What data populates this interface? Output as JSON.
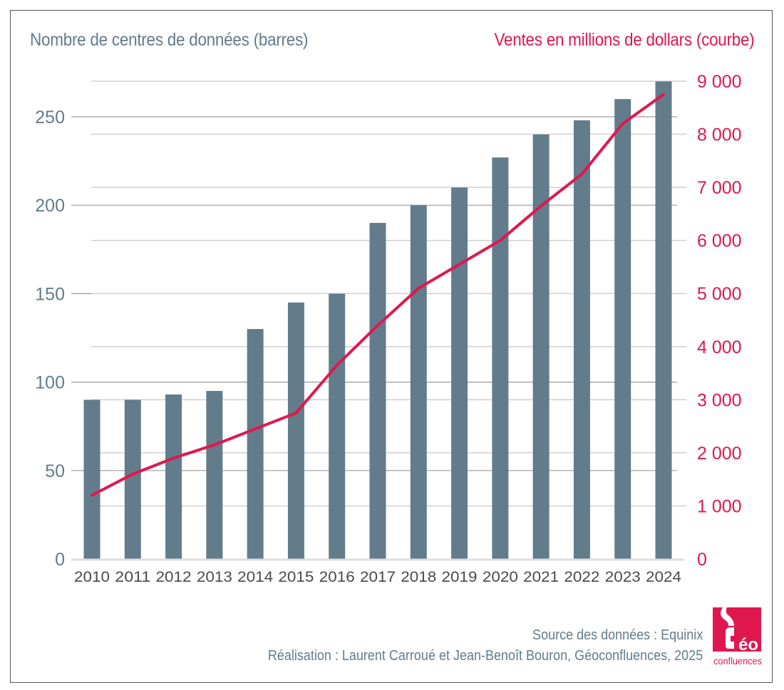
{
  "titles": {
    "left_axis_title": "Nombre de centres de données (barres)",
    "right_axis_title": "Ventes en millions de dollars (courbe)"
  },
  "credits": {
    "source": "Source des données : Equinix",
    "author": "Réalisation : Laurent Carroué et Jean-Benoît Bouron, Géoconfluences, 2025"
  },
  "logo": {
    "letters": "éo",
    "word": "confluences",
    "color": "#e0174f"
  },
  "colors": {
    "bars": "#627c8b",
    "line": "#e0174f",
    "left_axis_text": "#627c8b",
    "right_axis_text": "#e0174f",
    "x_axis_text": "#4a4a4a",
    "grid_major": "#9a9a9a",
    "grid_minor": "#cfcfcf",
    "baseline": "#dddddd"
  },
  "chart_data": {
    "type": "bar+line",
    "title": "",
    "categories": [
      "2010",
      "2011",
      "2012",
      "2013",
      "2014",
      "2015",
      "2016",
      "2017",
      "2018",
      "2019",
      "2020",
      "2021",
      "2022",
      "2023",
      "2024"
    ],
    "series": [
      {
        "name": "Nombre de centres de données (barres)",
        "type": "bar",
        "axis": "left",
        "values": [
          90,
          90,
          93,
          95,
          130,
          145,
          150,
          190,
          200,
          210,
          227,
          240,
          248,
          260,
          270
        ]
      },
      {
        "name": "Ventes en millions de dollars (courbe)",
        "type": "line",
        "axis": "right",
        "values": [
          1200,
          1600,
          1900,
          2150,
          2450,
          2750,
          3650,
          4400,
          5100,
          5550,
          6000,
          6650,
          7250,
          8200,
          8750
        ]
      }
    ],
    "left_axis": {
      "label": "Nombre de centres de données (barres)",
      "range": [
        0,
        270
      ],
      "ticks": [
        0,
        50,
        100,
        150,
        200,
        250
      ],
      "tick_labels": [
        "0",
        "50",
        "100",
        "150",
        "200",
        "250"
      ]
    },
    "right_axis": {
      "label": "Ventes en millions de dollars (courbe)",
      "range": [
        0,
        9000
      ],
      "ticks": [
        0,
        1000,
        2000,
        3000,
        4000,
        5000,
        6000,
        7000,
        8000,
        9000
      ],
      "tick_labels": [
        "0",
        "1 000",
        "2 000",
        "3 000",
        "4 000",
        "5 000",
        "6 000",
        "7 000",
        "8 000",
        "9 000"
      ]
    },
    "xlabel": "",
    "grid": true,
    "legend": "none"
  }
}
